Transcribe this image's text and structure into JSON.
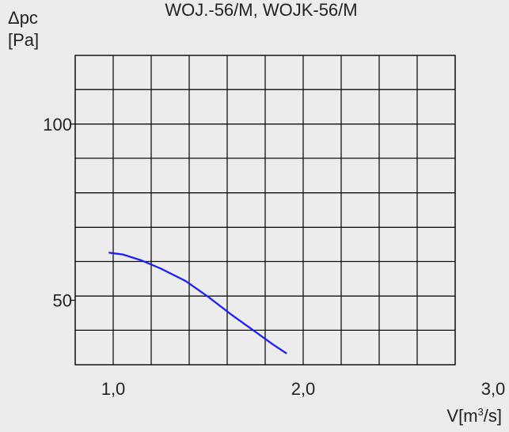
{
  "chart_data": {
    "type": "line",
    "title": "WOJ.-56/M, WOJK-56/M",
    "ylabel": {
      "symbol": "Δpc",
      "unit": "[Pa]"
    },
    "xlabel": {
      "symbol": "V[m",
      "sup": "3",
      "rest": "/s]"
    },
    "xlim": [
      0.8,
      2.8
    ],
    "ylim": [
      31.7,
      119.5
    ],
    "x_grid": [
      0.8,
      1.0,
      1.2,
      1.4,
      1.6,
      1.8,
      2.0,
      2.2,
      2.4,
      2.6,
      2.8
    ],
    "y_grid": [
      31.7,
      41.5,
      51.2,
      61.0,
      70.7,
      80.5,
      90.3,
      100.0,
      109.8,
      119.5
    ],
    "x_ticks": [
      {
        "value": 1.0,
        "label": "1,0"
      },
      {
        "value": 2.0,
        "label": "2,0"
      },
      {
        "value": 3.0,
        "label": "3,0"
      }
    ],
    "y_ticks": [
      {
        "value": 100,
        "label": "100"
      },
      {
        "value": 50,
        "label": "50"
      }
    ],
    "grid": true,
    "series": [
      {
        "color": "#1a1aff",
        "points": [
          [
            0.98,
            63.5
          ],
          [
            1.05,
            63.0
          ],
          [
            1.15,
            61.3
          ],
          [
            1.25,
            59.0
          ],
          [
            1.38,
            55.5
          ],
          [
            1.5,
            51.0
          ],
          [
            1.62,
            46.0
          ],
          [
            1.75,
            41.0
          ],
          [
            1.84,
            37.5
          ],
          [
            1.91,
            35.0
          ]
        ]
      }
    ]
  }
}
